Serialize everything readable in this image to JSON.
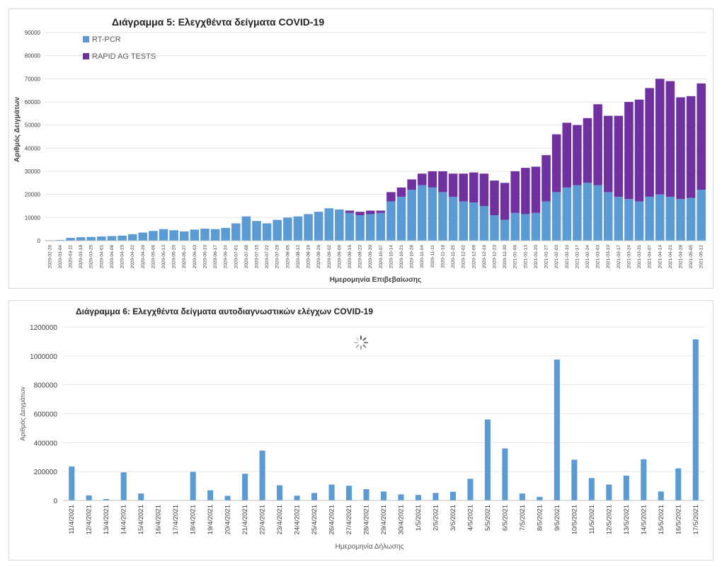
{
  "colors": {
    "rt_pcr": "#5b9bd5",
    "rapid_ag": "#7030a0",
    "grid": "#e6e6e6",
    "axis_text": "#404040"
  },
  "chart_data": [
    {
      "type": "bar",
      "stacked": true,
      "title": "Διάγραμμα 5: Ελεγχθέντα δείγματα COVID-19",
      "xlabel": "Ημερομηνία Επιβεβαίωσης",
      "ylabel": "Αριθμός Δειγμάτων",
      "ylim": [
        0,
        90000
      ],
      "yticks": [
        0,
        10000,
        20000,
        30000,
        40000,
        50000,
        60000,
        70000,
        80000,
        90000
      ],
      "grid": true,
      "legend_position": "top-left",
      "x_tick_labels": [
        "2020-02-26",
        "2020-03-04",
        "2020-03-11",
        "2020-03-18",
        "2020-03-25",
        "2020-04-01",
        "2020-04-08",
        "2020-04-15",
        "2020-04-22",
        "2020-04-29",
        "2020-05-06",
        "2020-05-13",
        "2020-05-20",
        "2020-05-27",
        "2020-06-03",
        "2020-06-10",
        "2020-06-17",
        "2020-06-24",
        "2020-07-01",
        "2020-07-08",
        "2020-07-15",
        "2020-07-22",
        "2020-07-29",
        "2020-08-05",
        "2020-08-12",
        "2020-08-19",
        "2020-08-26",
        "2020-09-02",
        "2020-09-09",
        "2020-09-16",
        "2020-09-23",
        "2020-09-30",
        "2020-10-07",
        "2020-10-14",
        "2020-10-21",
        "2020-10-28",
        "2020-11-04",
        "2020-11-11",
        "2020-11-18",
        "2020-11-25",
        "2020-12-02",
        "2020-12-09",
        "2020-12-16",
        "2020-12-23",
        "2020-12-30",
        "2021-01-06",
        "2021-01-13",
        "2021-01-20",
        "2021-01-27",
        "2021-02-03",
        "2021-02-10",
        "2021-02-17",
        "2021-02-24",
        "2021-03-03",
        "2021-03-10",
        "2021-03-17",
        "2021-03-24",
        "2021-03-31",
        "2021-04-07",
        "2021-04-14",
        "2021-04-21",
        "2021-04-28",
        "2021-05-05",
        "2021-05-12"
      ],
      "weekly_series_note_free": true,
      "x": [
        "2020-02-26",
        "2020-03-04",
        "2020-03-11",
        "2020-03-18",
        "2020-03-25",
        "2020-04-01",
        "2020-04-08",
        "2020-04-15",
        "2020-04-22",
        "2020-04-29",
        "2020-05-06",
        "2020-05-13",
        "2020-05-20",
        "2020-05-27",
        "2020-06-03",
        "2020-06-10",
        "2020-06-17",
        "2020-06-24",
        "2020-07-01",
        "2020-07-08",
        "2020-07-15",
        "2020-07-22",
        "2020-07-29",
        "2020-08-05",
        "2020-08-12",
        "2020-08-19",
        "2020-08-26",
        "2020-09-02",
        "2020-09-09",
        "2020-09-16",
        "2020-09-23",
        "2020-09-30",
        "2020-10-07",
        "2020-10-14",
        "2020-10-21",
        "2020-10-28",
        "2020-11-04",
        "2020-11-11",
        "2020-11-18",
        "2020-11-25",
        "2020-12-02",
        "2020-12-09",
        "2020-12-16",
        "2020-12-23",
        "2020-12-30",
        "2021-01-06",
        "2021-01-13",
        "2021-01-20",
        "2021-01-27",
        "2021-02-03",
        "2021-02-10",
        "2021-02-17",
        "2021-02-24",
        "2021-03-03",
        "2021-03-10",
        "2021-03-17",
        "2021-03-24",
        "2021-03-31",
        "2021-04-07",
        "2021-04-14",
        "2021-04-21",
        "2021-04-28",
        "2021-05-05",
        "2021-05-12"
      ],
      "series": [
        {
          "name": "RT-PCR",
          "values": [
            200,
            300,
            1200,
            1500,
            1600,
            1800,
            2000,
            2200,
            2800,
            3500,
            4200,
            5000,
            4500,
            4000,
            4800,
            5200,
            5000,
            5500,
            7500,
            10500,
            8500,
            7500,
            9000,
            10000,
            10500,
            11500,
            12500,
            14000,
            13500,
            12000,
            11000,
            11500,
            12000,
            17000,
            19000,
            22000,
            24000,
            23000,
            21000,
            19000,
            17000,
            16500,
            15000,
            11000,
            9000,
            12000,
            11500,
            12000,
            17000,
            21000,
            23000,
            24000,
            25000,
            24000,
            21000,
            19000,
            18000,
            17000,
            19000,
            20000,
            19000,
            18000,
            18500,
            22000
          ]
        },
        {
          "name": "RAPID AG TESTS",
          "values": [
            0,
            0,
            0,
            0,
            0,
            0,
            0,
            0,
            0,
            0,
            0,
            0,
            0,
            0,
            0,
            0,
            0,
            0,
            0,
            0,
            0,
            0,
            0,
            0,
            0,
            0,
            0,
            0,
            0,
            1000,
            1500,
            1500,
            1000,
            4000,
            4000,
            4500,
            5000,
            7000,
            9000,
            10000,
            12000,
            13000,
            14000,
            15000,
            16000,
            18000,
            20000,
            20000,
            20000,
            25000,
            28000,
            26000,
            28000,
            35000,
            33000,
            35000,
            42000,
            44000,
            47000,
            50000,
            50000,
            44000,
            44000,
            46000
          ]
        }
      ]
    },
    {
      "type": "bar",
      "title": "Διάγραμμα 6: Ελεγχθέντα δείγματα αυτοδιαγνωστικών ελέγχων COVID-19",
      "xlabel": "Ημερομηνία Δήλωσης",
      "ylabel": "Αριθμός Δειγμάτων",
      "ylim": [
        0,
        1200000
      ],
      "yticks": [
        0,
        200000,
        400000,
        600000,
        800000,
        1000000,
        1200000
      ],
      "grid": true,
      "categories": [
        "11/4/2021",
        "12/4/2021",
        "13/4/2021",
        "14/4/2021",
        "15/4/2021",
        "16/4/2021",
        "17/4/2021",
        "18/4/2021",
        "19/4/2021",
        "20/4/2021",
        "21/4/2021",
        "22/4/2021",
        "23/4/2021",
        "24/4/2021",
        "25/4/2021",
        "26/4/2021",
        "27/4/2021",
        "28/4/2021",
        "29/4/2021",
        "30/4/2021",
        "1/5/2021",
        "2/5/2021",
        "3/5/2021",
        "4/5/2021",
        "5/5/2021",
        "6/5/2021",
        "7/5/2021",
        "8/5/2021",
        "9/5/2021",
        "10/5/2021",
        "11/5/2021",
        "12/5/2021",
        "13/5/2021",
        "14/5/2021",
        "15/5/2021",
        "16/5/2021",
        "17/5/2021"
      ],
      "values": [
        235000,
        35000,
        10000,
        195000,
        48000,
        0,
        0,
        198000,
        70000,
        32000,
        185000,
        345000,
        105000,
        33000,
        52000,
        110000,
        102000,
        78000,
        62000,
        42000,
        38000,
        52000,
        60000,
        150000,
        560000,
        360000,
        48000,
        25000,
        975000,
        282000,
        155000,
        110000,
        172000,
        285000,
        62000,
        222000,
        1115000
      ]
    }
  ]
}
